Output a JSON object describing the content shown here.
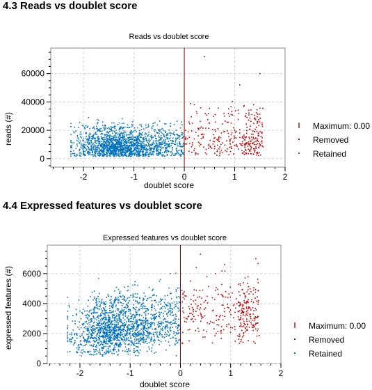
{
  "sections": [
    {
      "heading": "4.3 Reads vs doublet score"
    },
    {
      "heading": "4.4 Expressed features vs doublet score"
    }
  ],
  "colors": {
    "retained": "#0072BD",
    "removed": "#C00000",
    "threshold": "#8B0000",
    "grid": "#cccccc"
  },
  "chart_data": [
    {
      "type": "scatter",
      "title": "Reads vs doublet score",
      "xlabel": "doublet score",
      "ylabel": "reads (#)",
      "xlim": [
        -2.65,
        2.0
      ],
      "ylim": [
        -6000,
        78000
      ],
      "xticks": [
        -2,
        -1,
        0,
        1,
        2
      ],
      "yticks": [
        0,
        20000,
        40000,
        60000
      ],
      "xtick_labels": [
        "-2",
        "-1",
        "0",
        "1",
        "2"
      ],
      "ytick_labels": [
        "0",
        "20000",
        "40000",
        "60000"
      ],
      "grid": true,
      "legend_position": "right",
      "threshold": 0.0,
      "legend": [
        {
          "label": "Maximum: 0.00",
          "marker": "bar",
          "color": "#C00000"
        },
        {
          "label": "Removed",
          "marker": "dot",
          "color": "#C00000"
        },
        {
          "label": "Retained",
          "marker": "dot",
          "color": "#0072BD"
        }
      ],
      "series": [
        {
          "name": "Retained",
          "color": "#0072BD",
          "points": [
            [
              -2.25,
              9000
            ],
            [
              -2.1,
              22000
            ],
            [
              -2.0,
              14000
            ],
            [
              -1.9,
              8000
            ],
            [
              -1.8,
              22000
            ],
            [
              -1.7,
              12000
            ],
            [
              -1.6,
              5000
            ],
            [
              -1.5,
              18000
            ],
            [
              -1.4,
              7000
            ],
            [
              -1.3,
              10000
            ],
            [
              -1.2,
              25000
            ],
            [
              -1.1,
              6000
            ],
            [
              -1.0,
              15000
            ],
            [
              -0.9,
              4000
            ],
            [
              -0.8,
              12000
            ],
            [
              -0.6,
              20000
            ],
            [
              -0.5,
              9000
            ],
            [
              -0.3,
              14000
            ],
            [
              -0.2,
              24000
            ],
            [
              -0.1,
              11000
            ],
            [
              -0.05,
              6000
            ]
          ]
        },
        {
          "name": "Removed",
          "color": "#C00000",
          "points": [
            [
              0.1,
              15000
            ],
            [
              0.2,
              38000
            ],
            [
              0.3,
              9000
            ],
            [
              0.4,
              72000
            ],
            [
              0.5,
              25000
            ],
            [
              0.6,
              12000
            ],
            [
              0.8,
              30000
            ],
            [
              0.9,
              8000
            ],
            [
              1.0,
              20000
            ],
            [
              1.1,
              52000
            ],
            [
              1.2,
              9000
            ],
            [
              1.3,
              14000
            ],
            [
              1.4,
              7000
            ],
            [
              1.5,
              60000
            ],
            [
              1.45,
              25000
            ]
          ]
        }
      ]
    },
    {
      "type": "scatter",
      "title": "Expressed features vs doublet score",
      "xlabel": "doublet score",
      "ylabel": "expressed features (#)",
      "xlim": [
        -2.65,
        2.0
      ],
      "ylim": [
        0,
        7900
      ],
      "xticks": [
        -2,
        -1,
        0,
        1,
        2
      ],
      "yticks": [
        0,
        2000,
        4000,
        6000
      ],
      "xtick_labels": [
        "-2",
        "-1",
        "0",
        "1",
        "2"
      ],
      "ytick_labels": [
        "0",
        "2000",
        "4000",
        "6000"
      ],
      "grid": true,
      "legend_position": "right",
      "threshold": 0.0,
      "legend": [
        {
          "label": "Maximum: 0.00",
          "marker": "bar",
          "color": "#C00000"
        },
        {
          "label": "Removed",
          "marker": "dot",
          "color": "#C00000"
        },
        {
          "label": "Retained",
          "marker": "dot",
          "color": "#0072BD"
        }
      ],
      "series": [
        {
          "name": "Retained",
          "color": "#0072BD",
          "points": [
            [
              -2.1,
              2000
            ],
            [
              -2.0,
              3500
            ],
            [
              -1.9,
              1200
            ],
            [
              -1.8,
              2600
            ],
            [
              -1.7,
              900
            ],
            [
              -1.6,
              1800
            ],
            [
              -1.5,
              3200
            ],
            [
              -1.4,
              1500
            ],
            [
              -1.3,
              2200
            ],
            [
              -1.2,
              4100
            ],
            [
              -1.1,
              1300
            ],
            [
              -1.0,
              2800
            ],
            [
              -0.9,
              3600
            ],
            [
              -0.8,
              2000
            ],
            [
              -0.7,
              4500
            ],
            [
              -0.5,
              3000
            ],
            [
              -0.4,
              5600
            ],
            [
              -0.3,
              2500
            ],
            [
              -0.2,
              6000
            ],
            [
              -0.1,
              3800
            ],
            [
              -0.05,
              2200
            ]
          ]
        },
        {
          "name": "Removed",
          "color": "#C00000",
          "points": [
            [
              0.05,
              3500
            ],
            [
              0.2,
              5500
            ],
            [
              0.3,
              2200
            ],
            [
              0.4,
              7300
            ],
            [
              0.5,
              4200
            ],
            [
              0.6,
              2800
            ],
            [
              0.7,
              6000
            ],
            [
              0.8,
              3200
            ],
            [
              0.9,
              4800
            ],
            [
              1.0,
              2400
            ],
            [
              1.1,
              3700
            ],
            [
              1.2,
              2700
            ],
            [
              1.3,
              4500
            ],
            [
              1.4,
              3000
            ],
            [
              1.5,
              7000
            ],
            [
              1.55,
              4200
            ]
          ]
        }
      ]
    }
  ]
}
